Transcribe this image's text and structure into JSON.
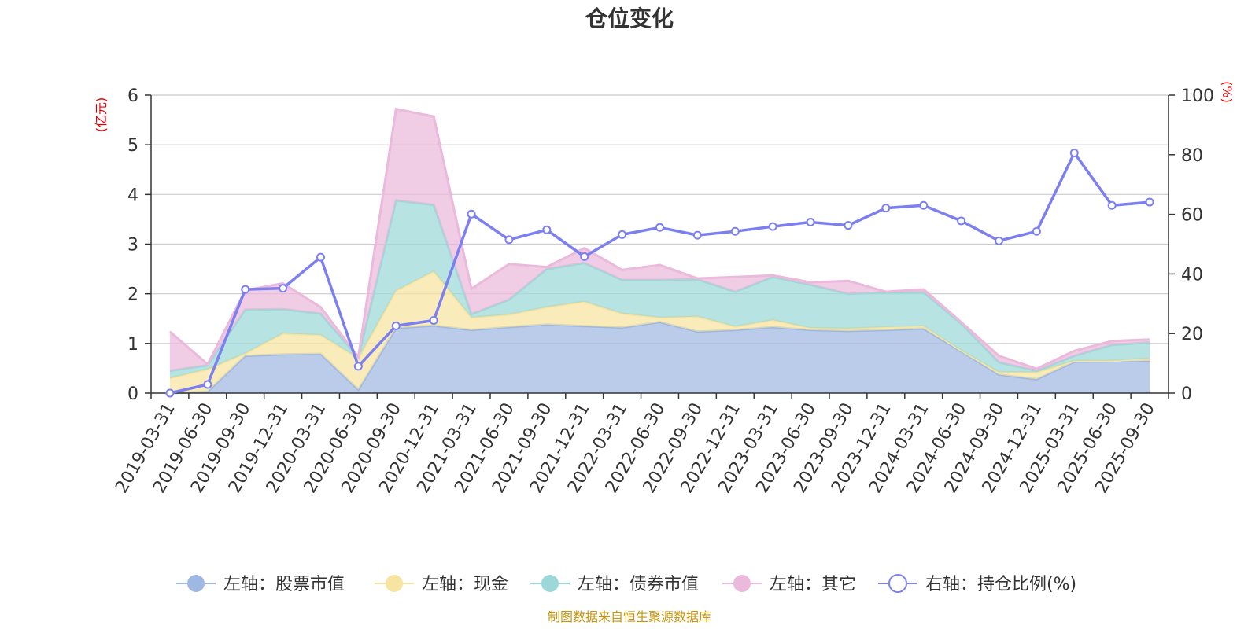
{
  "chart_data": {
    "type": "area",
    "title": "仓位变化",
    "left_unit": "(亿元)",
    "right_unit": "(%)",
    "left_ylim": [
      0,
      6
    ],
    "left_ticks": [
      0,
      1,
      2,
      3,
      4,
      5,
      6
    ],
    "right_ylim": [
      0,
      100
    ],
    "right_ticks": [
      0,
      20,
      40,
      60,
      80,
      100
    ],
    "categories": [
      "2019-03-31",
      "2019-06-30",
      "2019-09-30",
      "2019-12-31",
      "2020-03-31",
      "2020-06-30",
      "2020-09-30",
      "2020-12-31",
      "2021-03-31",
      "2021-06-30",
      "2021-09-30",
      "2021-12-31",
      "2022-03-31",
      "2022-06-30",
      "2022-09-30",
      "2022-12-31",
      "2023-03-31",
      "2023-06-30",
      "2023-09-30",
      "2023-12-31",
      "2024-03-31",
      "2024-06-30",
      "2024-09-30",
      "2024-12-31",
      "2025-03-31",
      "2025-06-30",
      "2025-09-30"
    ],
    "stacked_series": [
      {
        "name": "左轴：股票市值",
        "axis": "left",
        "color": "#9fb8e2",
        "values": [
          0.0,
          0.03,
          0.75,
          0.78,
          0.79,
          0.07,
          1.31,
          1.36,
          1.27,
          1.33,
          1.38,
          1.35,
          1.32,
          1.43,
          1.24,
          1.27,
          1.33,
          1.27,
          1.25,
          1.27,
          1.3,
          0.84,
          0.37,
          0.28,
          0.63,
          0.64,
          0.65
        ]
      },
      {
        "name": "左轴：现金",
        "axis": "left",
        "color": "#f7e4a0",
        "values": [
          0.3,
          0.45,
          0.05,
          0.42,
          0.38,
          0.63,
          0.75,
          1.09,
          0.25,
          0.25,
          0.35,
          0.49,
          0.28,
          0.09,
          0.3,
          0.07,
          0.14,
          0.04,
          0.05,
          0.06,
          0.05,
          0.02,
          0.05,
          0.14,
          0.02,
          0.01,
          0.05
        ]
      },
      {
        "name": "左轴：债券市值",
        "axis": "left",
        "color": "#9dd8d8",
        "values": [
          0.15,
          0.08,
          0.88,
          0.49,
          0.43,
          0.02,
          1.82,
          1.34,
          0.07,
          0.3,
          0.77,
          0.78,
          0.68,
          0.76,
          0.75,
          0.7,
          0.87,
          0.87,
          0.7,
          0.7,
          0.68,
          0.54,
          0.2,
          0.03,
          0.1,
          0.32,
          0.32
        ]
      },
      {
        "name": "左轴：其它",
        "axis": "left",
        "color": "#eab9db",
        "values": [
          0.79,
          0.02,
          0.39,
          0.52,
          0.13,
          0.01,
          1.84,
          1.78,
          0.51,
          0.72,
          0.04,
          0.3,
          0.2,
          0.3,
          0.02,
          0.3,
          0.03,
          0.05,
          0.26,
          0.01,
          0.06,
          0.03,
          0.13,
          0.04,
          0.1,
          0.08,
          0.06
        ]
      }
    ],
    "line_series": {
      "name": "右轴：持仓比例(%)",
      "axis": "right",
      "color": "#7b7ff0",
      "values": [
        0.0,
        2.9,
        34.8,
        35.2,
        45.6,
        9.0,
        22.6,
        24.4,
        60.1,
        51.5,
        54.8,
        45.8,
        53.2,
        55.6,
        53.0,
        54.3,
        55.9,
        57.4,
        56.3,
        62.1,
        63.0,
        57.8,
        51.1,
        54.3,
        80.6,
        63.0,
        64.1
      ]
    },
    "legend_position": "bottom",
    "source_text": "制图数据来自恒生聚源数据库"
  }
}
